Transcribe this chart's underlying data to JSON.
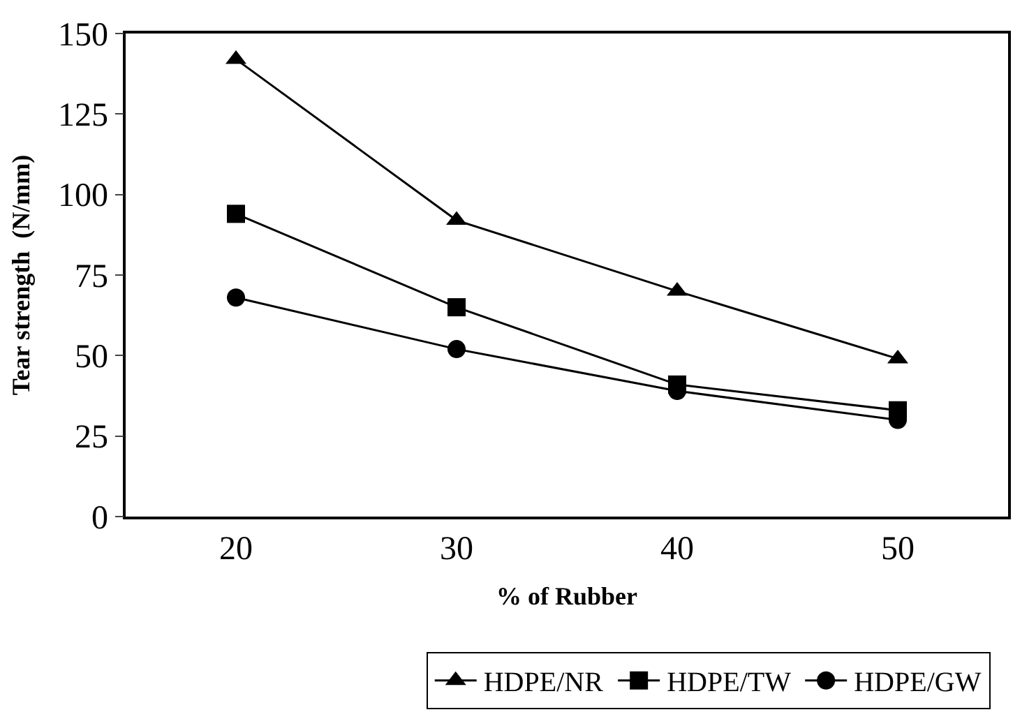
{
  "chart_data": {
    "type": "line",
    "xlabel": "% of Rubber",
    "ylabel": "Tear strength  (N/mm)",
    "categories": [
      "20",
      "30",
      "40",
      "50"
    ],
    "series": [
      {
        "name": "HDPE/NR",
        "color": "#000000",
        "marker": "triangle",
        "values": [
          142,
          92,
          70,
          49
        ]
      },
      {
        "name": "HDPE/TW",
        "color": "#000000",
        "marker": "square",
        "values": [
          94,
          65,
          41,
          33
        ]
      },
      {
        "name": "HDPE/GW",
        "color": "#000000",
        "marker": "circle",
        "values": [
          68,
          52,
          39,
          30
        ]
      }
    ],
    "ylim": [
      0,
      150
    ],
    "yticks": [
      0,
      25,
      50,
      75,
      100,
      125,
      150
    ],
    "legend": "bottom",
    "line_style": "solid"
  }
}
